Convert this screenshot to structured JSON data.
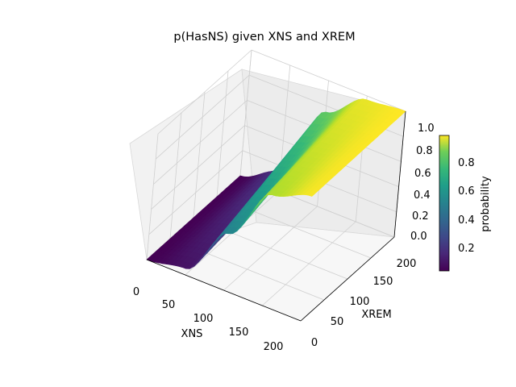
{
  "chart_data": {
    "type": "surface",
    "title": "p(HasNS) given XNS and XREM",
    "xlabel": "XNS",
    "ylabel": "XREM",
    "zlabel": "",
    "xlim": [
      0,
      200
    ],
    "ylim": [
      0,
      200
    ],
    "zlim": [
      0.0,
      1.0
    ],
    "x_ticks": [
      "0",
      "50",
      "100",
      "150",
      "200"
    ],
    "y_ticks": [
      "0",
      "50",
      "100",
      "150",
      "200"
    ],
    "z_ticks": [
      "0.0",
      "0.2",
      "0.4",
      "0.6",
      "0.8",
      "1.0"
    ],
    "colorbar": {
      "label": "probability",
      "colormap": "viridis",
      "range": [
        0.0,
        1.0
      ],
      "ticks": [
        "0.2",
        "0.4",
        "0.6",
        "0.8"
      ]
    },
    "surface_samples": {
      "xns": [
        0,
        50,
        100,
        150,
        200
      ],
      "xrem_at_0": [
        0.0,
        0.05,
        0.45,
        0.88,
        0.99
      ],
      "xrem_at_200": [
        0.0,
        0.15,
        0.75,
        0.97,
        1.0
      ]
    },
    "grid": true
  }
}
